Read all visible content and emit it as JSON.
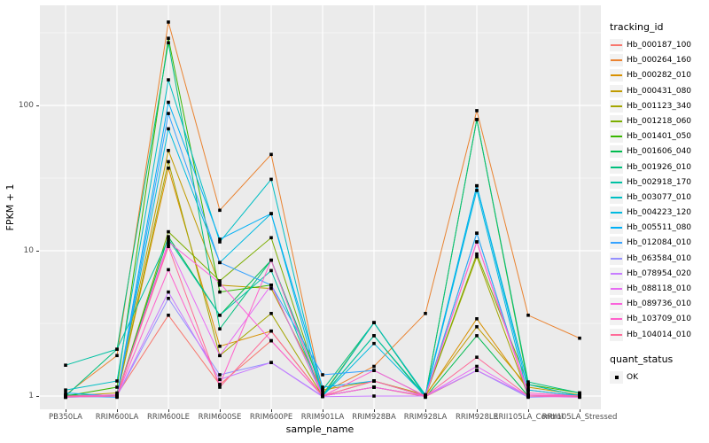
{
  "colors": {
    "panel_bg": "#EBEBEB",
    "grid": "#FFFFFF",
    "axis_text": "#4D4D4D",
    "title_text": "#000000",
    "legend_key_bg": "#F2F2F2",
    "point": "#000000"
  },
  "chart_data": {
    "type": "line",
    "title": "",
    "xlabel": "sample_name",
    "ylabel": "FPKM + 1",
    "y_scale": "log10",
    "y_ticks": [
      1,
      10,
      100
    ],
    "ylim": [
      0.93,
      490
    ],
    "grid": true,
    "legend_position": "right",
    "legend_title": "tracking_id",
    "legend2_title": "quant_status",
    "quant_status_entries": [
      {
        "label": "OK",
        "shape": "filled-square",
        "color": "#000000"
      }
    ],
    "categories": [
      "PB350LA",
      "RRIM600LA",
      "RRIM600LE",
      "RRIM600SE",
      "RRIM600PE",
      "RRIM901LA",
      "RRIM928BA",
      "RRIM928LA",
      "RRIM928LE",
      "RRII105LA_Control",
      "RRII105LA_Stressed"
    ],
    "series": [
      {
        "name": "Hb_000187_100",
        "color": "#F8766D",
        "values": [
          1.0,
          1.02,
          3.6,
          1.2,
          2.4,
          1.0,
          1.15,
          0.99,
          1.5,
          1.0,
          1.0
        ]
      },
      {
        "name": "Hb_000264_160",
        "color": "#EA8331",
        "values": [
          1.02,
          1.9,
          375,
          19,
          46,
          1.05,
          1.6,
          3.7,
          92,
          3.6,
          2.5
        ]
      },
      {
        "name": "Hb_000282_010",
        "color": "#D89000",
        "values": [
          0.99,
          1.0,
          37,
          2.2,
          2.8,
          1.0,
          1.27,
          1.0,
          3.4,
          1.1,
          1.0
        ]
      },
      {
        "name": "Hb_000431_080",
        "color": "#C09B00",
        "values": [
          1.0,
          1.05,
          49,
          5.8,
          5.5,
          1.1,
          1.27,
          1.02,
          3.0,
          1.15,
          1.02
        ]
      },
      {
        "name": "Hb_001123_340",
        "color": "#A3A500",
        "values": [
          0.98,
          1.0,
          41,
          1.9,
          3.7,
          1.0,
          1.15,
          1.0,
          9.1,
          1.0,
          0.99
        ]
      },
      {
        "name": "Hb_001218_060",
        "color": "#7CAE00",
        "values": [
          1.0,
          1.0,
          13.5,
          6.2,
          12.3,
          1.02,
          3.2,
          1.0,
          9.5,
          1.2,
          1.0
        ]
      },
      {
        "name": "Hb_001401_050",
        "color": "#39B600",
        "values": [
          1.0,
          1.15,
          290,
          5.2,
          5.8,
          1.0,
          3.2,
          1.0,
          80,
          1.2,
          1.05
        ]
      },
      {
        "name": "Hb_001606_040",
        "color": "#00BB4E",
        "values": [
          1.02,
          1.0,
          12.5,
          3.6,
          8.6,
          1.0,
          2.6,
          0.98,
          2.6,
          1.0,
          1.0
        ]
      },
      {
        "name": "Hb_001926_010",
        "color": "#00BF7D",
        "values": [
          1.0,
          2.1,
          270,
          2.9,
          8.6,
          1.1,
          3.2,
          1.0,
          80,
          1.25,
          1.05
        ]
      },
      {
        "name": "Hb_002918_170",
        "color": "#00C1A3",
        "values": [
          1.63,
          2.1,
          12,
          3.6,
          7.3,
          1.0,
          2.6,
          1.0,
          13.2,
          1.0,
          1.0
        ]
      },
      {
        "name": "Hb_003077_010",
        "color": "#00BFC4",
        "values": [
          1.1,
          1.27,
          150,
          11.5,
          31,
          1.0,
          3.2,
          1.02,
          28,
          1.2,
          1.0
        ]
      },
      {
        "name": "Hb_004223_120",
        "color": "#00BAE0",
        "values": [
          1.0,
          1.0,
          69,
          8.3,
          18,
          1.0,
          2.3,
          1.0,
          26,
          1.0,
          1.02
        ]
      },
      {
        "name": "Hb_005511_080",
        "color": "#00B0F6",
        "values": [
          1.05,
          1.0,
          105,
          12,
          18,
          1.15,
          1.27,
          1.0,
          28,
          1.1,
          1.0
        ]
      },
      {
        "name": "Hb_012084_010",
        "color": "#35A2FF",
        "values": [
          1.0,
          0.98,
          88,
          8.3,
          5.8,
          1.4,
          1.5,
          1.0,
          13.2,
          1.0,
          1.0
        ]
      },
      {
        "name": "Hb_063584_010",
        "color": "#9590FF",
        "values": [
          1.0,
          1.0,
          4.7,
          1.4,
          1.7,
          1.0,
          1.15,
          1.0,
          1.5,
          0.98,
          1.0
        ]
      },
      {
        "name": "Hb_078954_020",
        "color": "#C77CFF",
        "values": [
          0.98,
          1.0,
          5.2,
          1.3,
          1.7,
          0.99,
          1.0,
          1.0,
          1.5,
          1.0,
          1.0
        ]
      },
      {
        "name": "Hb_088118_010",
        "color": "#E76BF3",
        "values": [
          1.0,
          1.02,
          11,
          1.9,
          5.8,
          1.0,
          1.27,
          1.0,
          1.6,
          1.0,
          0.98
        ]
      },
      {
        "name": "Hb_089736_010",
        "color": "#FA62DB",
        "values": [
          1.0,
          1.0,
          11.5,
          6.0,
          2.4,
          1.0,
          1.15,
          1.0,
          11.5,
          1.02,
          1.0
        ]
      },
      {
        "name": "Hb_103709_010",
        "color": "#FF61CC",
        "values": [
          0.99,
          1.0,
          7.4,
          1.2,
          8.6,
          1.0,
          1.5,
          1.0,
          11.5,
          1.05,
          1.0
        ]
      },
      {
        "name": "Hb_104014_010",
        "color": "#FF6A98",
        "values": [
          1.0,
          1.0,
          10.7,
          1.15,
          2.8,
          1.0,
          1.27,
          1.0,
          1.85,
          1.0,
          1.0
        ]
      }
    ]
  }
}
